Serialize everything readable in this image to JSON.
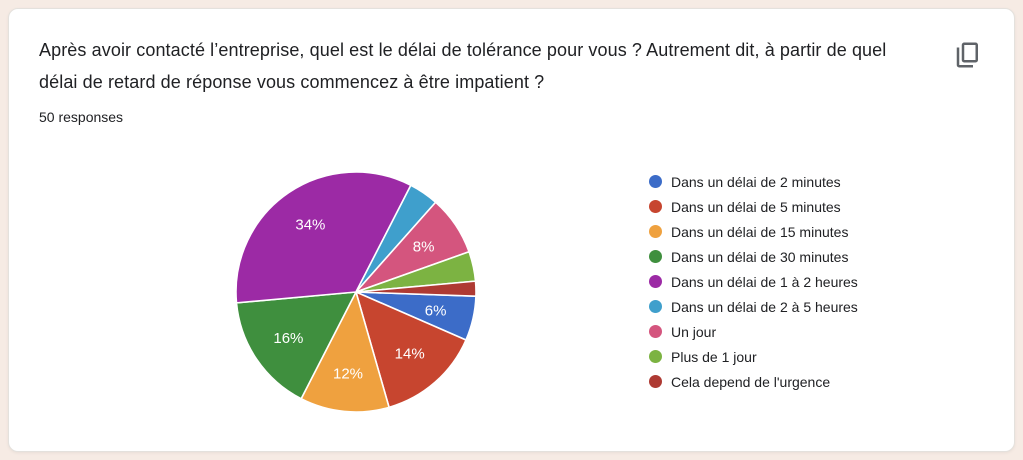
{
  "page": {
    "background_color": "#F6EBE4",
    "card_color": "#FFFFFF"
  },
  "header": {
    "title": "Après avoir contacté l’entreprise, quel est le délai de tolérance pour vous ? Autrement dit, à partir de quel délai de retard de réponse vous commencez à être impatient ?",
    "responses_count": "50 responses"
  },
  "toolbar": {
    "copy_icon": "content-copy",
    "icon_color": "#5F6368"
  },
  "chart_data": {
    "type": "pie",
    "title": "Après avoir contacté l’entreprise, quel est le délai de tolérance pour vous ? Autrement dit, à partir de quel délai de retard de réponse vous commencez à être impatient ?",
    "total_responses": 50,
    "legend_position": "right",
    "start_angle_deg_clockwise_from_top": 92,
    "min_pct_for_label": 5,
    "slice_border_color": "#FFFFFF",
    "slices": [
      {
        "label": "Dans un délai de 2 minutes",
        "pct": 6,
        "count": 3,
        "color": "#3C6CC8"
      },
      {
        "label": "Dans un délai de 5 minutes",
        "pct": 14,
        "count": 7,
        "color": "#C7452F"
      },
      {
        "label": "Dans un délai de 15 minutes",
        "pct": 12,
        "count": 6,
        "color": "#EFA13F"
      },
      {
        "label": "Dans un délai de 30 minutes",
        "pct": 16,
        "count": 8,
        "color": "#3F8F3E"
      },
      {
        "label": "Dans un délai de 1 à 2 heures",
        "pct": 34,
        "count": 17,
        "color": "#9C2AA5"
      },
      {
        "label": "Dans un délai de 2 à 5 heures",
        "pct": 4,
        "count": 2,
        "color": "#3F9FCC"
      },
      {
        "label": "Un jour",
        "pct": 8,
        "count": 4,
        "color": "#D4557E"
      },
      {
        "label": "Plus de 1 jour",
        "pct": 4,
        "count": 2,
        "color": "#7CB342"
      },
      {
        "label": "Cela depend de l'urgence",
        "pct": 2,
        "count": 1,
        "color": "#AE3A33"
      }
    ]
  }
}
